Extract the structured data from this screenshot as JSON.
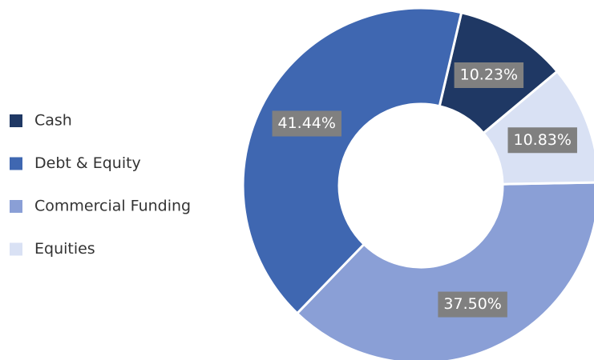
{
  "chart_data": {
    "type": "donut",
    "categories": [
      "Cash",
      "Debt & Equity",
      "Commercial Funding",
      "Equities"
    ],
    "values": [
      10.23,
      41.44,
      37.5,
      10.83
    ],
    "value_labels": [
      "10.23%",
      "41.44%",
      "37.50%",
      "10.83%"
    ],
    "colors": [
      "#1f3864",
      "#3f67b1",
      "#8a9fd6",
      "#d9e1f4"
    ],
    "legend": "left"
  }
}
